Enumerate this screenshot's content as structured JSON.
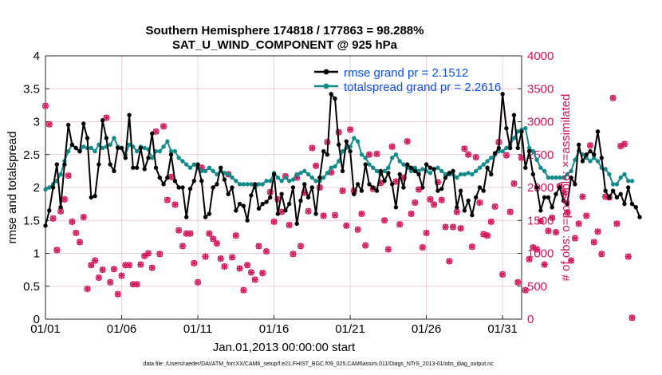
{
  "title_line1": "Southern Hemisphere 174818 / 177863 = 98.288%",
  "title_line2": "SAT_U_WIND_COMPONENT @ 925 hPa",
  "xlabel": "Jan.01,2013 00:00:00 start",
  "ylabel_left": "rmse and totalspread",
  "ylabel_right": "# of obs: o=possible; ×=assimilated",
  "footer": "data file: /Users/raeder/DAI/ATM_forcXX/CAM6_setup/f.e21.FHIST_BGC.f09_025.CAM6assim.011/Diags_NTrS_2013-01/obs_diag_output.nc",
  "colors": {
    "rmse": "#000000",
    "spread": "#138b8b",
    "obs": "#d0145a",
    "legend_text": "#0b4fe6",
    "grid": "#e6bfc9"
  },
  "legend": {
    "rmse": "rmse grand pr = 2.1512",
    "spread": "totalspread grand pr = 2.2616"
  },
  "chart_data": {
    "type": "line",
    "x_unit": "day index (0 = 01/01 00Z), 6-hourly",
    "x_ticks": [
      {
        "day": 0,
        "label": "01/01"
      },
      {
        "day": 5,
        "label": "01/06"
      },
      {
        "day": 10,
        "label": "01/11"
      },
      {
        "day": 15,
        "label": "01/16"
      },
      {
        "day": 20,
        "label": "01/21"
      },
      {
        "day": 25,
        "label": "01/26"
      },
      {
        "day": 30,
        "label": "01/31"
      }
    ],
    "xlim": [
      0,
      31.25
    ],
    "ylim_left": [
      0,
      4
    ],
    "yticks_left": [
      "0",
      "0.5",
      "1",
      "1.5",
      "2",
      "2.5",
      "3",
      "3.5",
      "4"
    ],
    "ylim_right": [
      0,
      4000
    ],
    "yticks_right": [
      "0",
      "500",
      "1000",
      "1500",
      "2000",
      "2500",
      "3000",
      "3500",
      "4000"
    ],
    "series": [
      {
        "name": "rmse",
        "axis": "left",
        "marker": "dot",
        "values": [
          1.42,
          1.65,
          2.0,
          2.35,
          1.7,
          2.35,
          2.95,
          2.65,
          2.6,
          2.55,
          2.97,
          2.75,
          1.85,
          1.87,
          2.35,
          3.02,
          2.75,
          2.35,
          2.25,
          2.6,
          2.6,
          2.45,
          3.1,
          2.3,
          2.3,
          2.6,
          2.28,
          2.45,
          2.82,
          2.3,
          2.15,
          2.05,
          2.15,
          2.5,
          2.1,
          2.0,
          2.0,
          1.55,
          1.98,
          2.1,
          2.35,
          2.1,
          1.55,
          1.6,
          2.0,
          2.05,
          2.3,
          2.12,
          1.9,
          2.0,
          1.65,
          1.75,
          1.72,
          1.5,
          1.88,
          2.05,
          1.68,
          1.75,
          1.78,
          1.85,
          2.2,
          1.6,
          1.9,
          1.65,
          1.75,
          2.0,
          1.45,
          1.8,
          2.05,
          1.85,
          2.0,
          1.6,
          2.15,
          2.55,
          2.5,
          3.42,
          3.35,
          2.65,
          2.25,
          2.7,
          2.55,
          1.9,
          2.05,
          1.95,
          2.35,
          2.05,
          2.0,
          1.95,
          2.25,
          2.1,
          2.22,
          2.05,
          1.7,
          2.2,
          2.0,
          2.35,
          2.3,
          2.25,
          2.2,
          2.0,
          2.35,
          2.3,
          2.28,
          1.95,
          1.98,
          2.15,
          2.22,
          2.25,
          1.7,
          1.95,
          1.65,
          1.8,
          1.58,
          1.85,
          2.0,
          1.95,
          2.3,
          2.2,
          2.52,
          2.6,
          3.42,
          2.9,
          2.6,
          3.1,
          2.6,
          2.85,
          2.3,
          2.55,
          2.2,
          2.0,
          1.65,
          1.85,
          1.85,
          1.7,
          1.9,
          2.0,
          1.8,
          1.75,
          2.15,
          2.05,
          2.65,
          2.4,
          2.5,
          2.55,
          2.5,
          2.85,
          2.45,
          1.95,
          1.85,
          1.95,
          1.85,
          1.9,
          1.75,
          2.0,
          1.75,
          1.7,
          1.55
        ]
      },
      {
        "name": "totalspread",
        "axis": "left",
        "marker": "dot",
        "values": [
          1.97,
          2.0,
          2.05,
          2.1,
          2.2,
          2.4,
          2.55,
          2.65,
          2.6,
          2.55,
          2.62,
          2.6,
          2.6,
          2.55,
          2.65,
          2.6,
          2.62,
          2.65,
          2.75,
          2.62,
          2.6,
          2.5,
          2.65,
          2.62,
          2.55,
          2.62,
          2.6,
          2.58,
          2.45,
          2.55,
          2.55,
          2.62,
          2.7,
          2.55,
          2.55,
          2.45,
          2.4,
          2.35,
          2.3,
          2.35,
          2.3,
          2.25,
          2.25,
          2.3,
          2.25,
          2.2,
          2.25,
          2.22,
          2.2,
          2.15,
          2.1,
          2.05,
          2.05,
          2.05,
          2.05,
          2.0,
          2.05,
          2.05,
          2.1,
          2.1,
          2.22,
          2.15,
          2.1,
          2.15,
          2.1,
          2.12,
          2.2,
          2.22,
          2.25,
          2.2,
          2.15,
          2.1,
          2.1,
          2.15,
          2.22,
          2.3,
          2.32,
          2.4,
          2.55,
          2.6,
          2.62,
          2.75,
          2.7,
          2.5,
          2.45,
          2.35,
          2.3,
          2.25,
          2.2,
          2.25,
          2.3,
          2.45,
          2.5,
          2.4,
          2.35,
          2.3,
          2.25,
          2.3,
          2.25,
          2.28,
          2.25,
          2.22,
          2.28,
          2.3,
          2.25,
          2.2,
          2.2,
          2.2,
          2.15,
          2.2,
          2.2,
          2.22,
          2.2,
          2.25,
          2.3,
          2.35,
          2.4,
          2.45,
          2.5,
          2.55,
          2.55,
          2.6,
          2.65,
          2.75,
          2.85,
          2.88,
          2.9,
          2.6,
          2.55,
          2.42,
          2.3,
          2.25,
          2.15,
          2.15,
          2.15,
          2.15,
          2.15,
          2.2,
          2.25,
          2.42,
          2.55,
          2.5,
          2.45,
          2.4,
          2.45,
          2.4,
          2.3,
          2.28,
          2.2,
          2.05,
          2.05,
          2.15,
          2.2,
          2.1,
          2.1
        ]
      },
      {
        "name": "obs possible",
        "axis": "right",
        "marker": "circle",
        "values": [
          3240,
          2960,
          1530,
          1050,
          1640,
          1820,
          2180,
          1480,
          1310,
          1170,
          1550,
          460,
          820,
          890,
          630,
          750,
          3060,
          560,
          760,
          380,
          660,
          820,
          820,
          530,
          530,
          830,
          960,
          1000,
          780,
          2850,
          990,
          2930,
          1810,
          2160,
          1740,
          1350,
          1110,
          1300,
          1300,
          850,
          560,
          2300,
          950,
          1300,
          1220,
          1150,
          920,
          800,
          2200,
          940,
          1270,
          770,
          440,
          820,
          710,
          600,
          1110,
          700,
          1030,
          1930,
          1480,
          1820,
          1630,
          2170,
          1430,
          990,
          2150,
          1110,
          1920,
          1640,
          2600,
          2330,
          2000,
          1570,
          2690,
          2230,
          1580,
          2840,
          1950,
          1420,
          2880,
          1950,
          1360,
          1600,
          1120,
          2500,
          1980,
          2510,
          2070,
          1500,
          1060,
          2620,
          2090,
          1440,
          2150,
          2700,
          1600,
          1770,
          1970,
          1090,
          1310,
          1820,
          1740,
          2080,
          1810,
          1400,
          880,
          1400,
          1630,
          1380,
          2590,
          2500,
          1100,
          2460,
          1770,
          1290,
          1270,
          1480,
          1710,
          2690,
          680,
          2490,
          1630,
          2060,
          560,
          2450,
          440,
          910,
          1090,
          1060,
          1490,
          830,
          1340,
          1540,
          1320,
          2020,
          1920,
          1620,
          890,
          1230,
          1450,
          1860,
          1570,
          2640,
          1170,
          1330,
          990,
          1860,
          1850,
          3360,
          1450,
          2630,
          2660,
          950,
          20
        ]
      },
      {
        "name": "obs assimilated",
        "axis": "right",
        "marker": "cross",
        "values": [
          3240,
          2960,
          1530,
          1050,
          1640,
          1820,
          2180,
          1480,
          1310,
          1170,
          1550,
          460,
          820,
          890,
          630,
          750,
          3060,
          560,
          760,
          380,
          660,
          820,
          820,
          530,
          530,
          830,
          960,
          1000,
          780,
          2850,
          990,
          2930,
          1810,
          2160,
          1740,
          1350,
          1110,
          1300,
          1300,
          850,
          560,
          2300,
          950,
          1300,
          1220,
          1150,
          920,
          800,
          2200,
          940,
          1270,
          770,
          440,
          820,
          710,
          600,
          1110,
          700,
          1030,
          1930,
          1480,
          1820,
          1630,
          2170,
          1430,
          990,
          2150,
          1110,
          1920,
          1640,
          2600,
          2330,
          2000,
          1570,
          2690,
          2230,
          1580,
          2840,
          1950,
          1420,
          2880,
          1950,
          1360,
          1600,
          1120,
          2500,
          1980,
          2510,
          2070,
          1500,
          1060,
          2620,
          2090,
          1440,
          2150,
          2700,
          1600,
          1770,
          1970,
          1090,
          1310,
          1820,
          1740,
          2080,
          1810,
          1400,
          880,
          1400,
          1630,
          1380,
          2590,
          2500,
          1100,
          2460,
          1770,
          1290,
          1270,
          1480,
          1710,
          2690,
          680,
          2490,
          1630,
          2060,
          560,
          2450,
          440,
          910,
          1090,
          1060,
          1490,
          830,
          1340,
          1540,
          1320,
          2020,
          1920,
          1620,
          890,
          1230,
          1450,
          1860,
          1570,
          2640,
          1170,
          1330,
          990,
          1860,
          1850,
          3360,
          1450,
          2630,
          2660,
          950,
          20
        ]
      }
    ]
  }
}
